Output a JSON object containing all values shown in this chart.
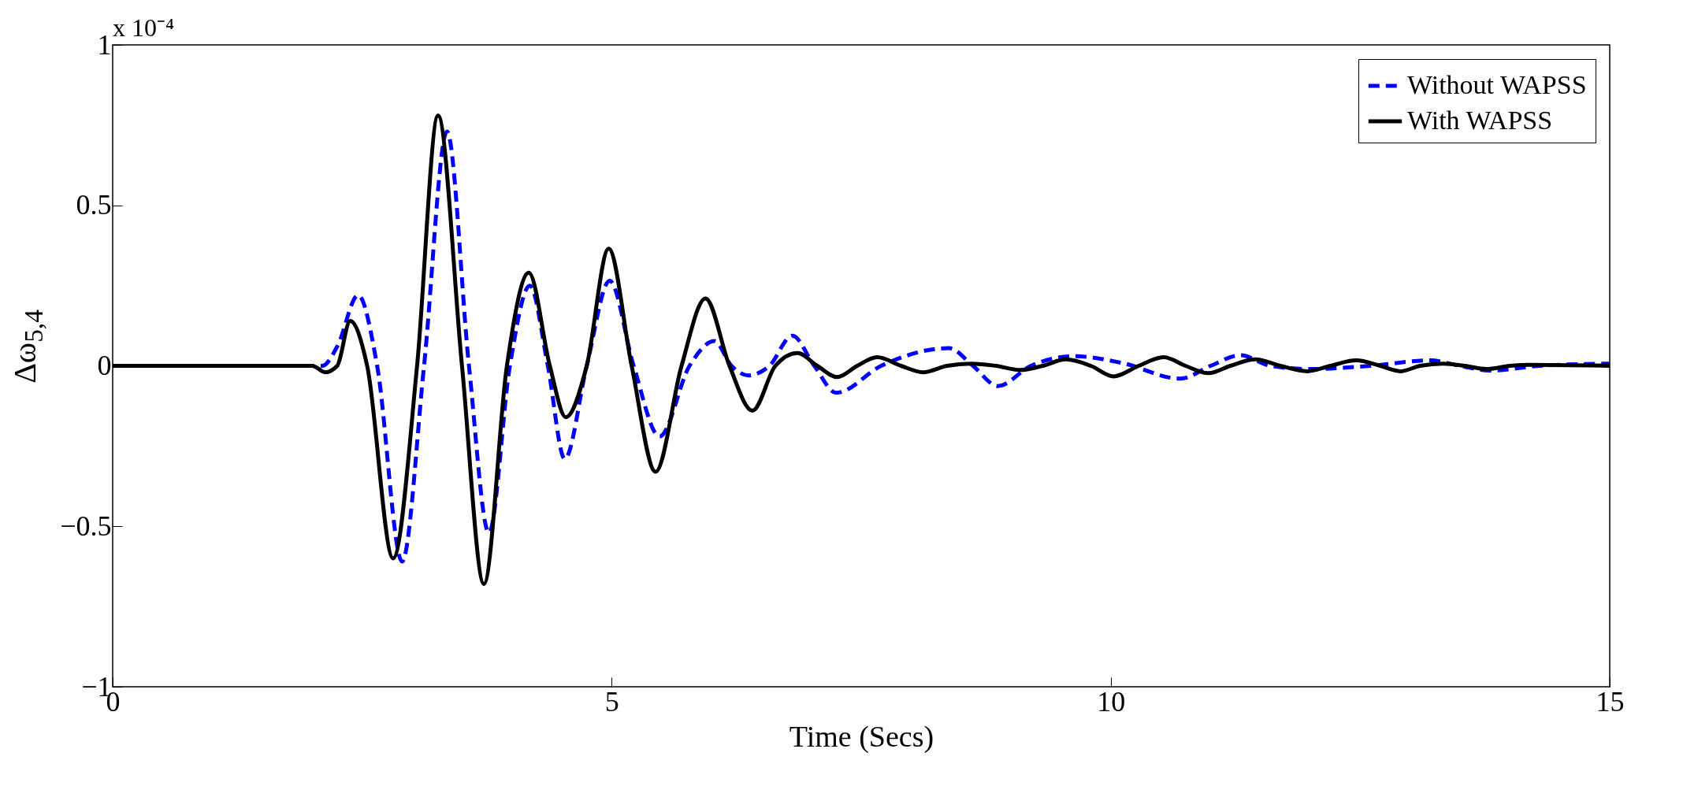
{
  "chart_data": {
    "type": "line",
    "xlabel": "Time (Secs)",
    "ylabel": "Δω$_{5,4}$",
    "annotations": [
      "x 10⁻⁴"
    ],
    "xlim": [
      0,
      15
    ],
    "xticks": [
      0,
      5,
      10,
      15
    ],
    "ylim": [
      -1,
      1
    ],
    "yticks": [
      -1,
      -0.5,
      0,
      0.5,
      1
    ],
    "grid": false,
    "legend": "top right",
    "marker": "none",
    "series": [
      {
        "name": "Without WAPSS",
        "color": "#0000ff",
        "line_style": "dashed",
        "x": [
          0,
          2.1,
          2.25,
          2.46,
          2.65,
          2.9,
          3.12,
          3.35,
          3.57,
          3.77,
          3.98,
          4.18,
          4.36,
          4.53,
          4.75,
          4.98,
          5.22,
          5.48,
          5.78,
          6.03,
          6.2,
          6.37,
          6.58,
          6.81,
          7.03,
          7.25,
          7.7,
          8.38,
          8.62,
          8.87,
          9.2,
          9.63,
          10.1,
          10.7,
          11.0,
          11.3,
          11.6,
          12.0,
          12.6,
          13.2,
          13.5,
          13.8,
          14.3,
          15
        ],
        "values": [
          0,
          0,
          0.06,
          0.22,
          0,
          -0.61,
          0,
          0.73,
          0,
          -0.52,
          0,
          0.25,
          0,
          -0.29,
          0,
          0.265,
          0,
          -0.22,
          0,
          0.077,
          0,
          -0.03,
          0,
          0.094,
          0,
          -0.084,
          0,
          0.055,
          0,
          -0.063,
          0,
          0.03,
          0.01,
          -0.04,
          0,
          0.033,
          0,
          -0.01,
          0,
          0.017,
          0,
          -0.015,
          0,
          0.007
        ]
      },
      {
        "name": "With WAPSS",
        "color": "#000000",
        "line_style": "solid",
        "x": [
          0,
          2.0,
          2.13,
          2.25,
          2.38,
          2.55,
          2.81,
          3.05,
          3.26,
          3.5,
          3.72,
          3.95,
          4.17,
          4.38,
          4.54,
          4.75,
          4.97,
          5.2,
          5.44,
          5.7,
          5.94,
          6.18,
          6.41,
          6.64,
          6.86,
          7.06,
          7.26,
          7.46,
          7.66,
          7.9,
          8.12,
          8.36,
          8.6,
          8.85,
          9.09,
          9.32,
          9.55,
          9.8,
          10.03,
          10.28,
          10.53,
          10.75,
          10.98,
          11.2,
          11.45,
          11.7,
          11.97,
          12.2,
          12.46,
          12.7,
          12.9,
          13.1,
          13.33,
          13.55,
          13.76,
          14.0,
          14.19,
          15
        ],
        "values": [
          0,
          0,
          -0.02,
          0,
          0.14,
          0,
          -0.6,
          0,
          0.78,
          0,
          -0.68,
          0,
          0.29,
          0,
          -0.16,
          0,
          0.365,
          0,
          -0.33,
          0,
          0.21,
          0,
          -0.14,
          0,
          0.04,
          0,
          -0.035,
          0,
          0.027,
          0,
          -0.02,
          0,
          0.007,
          0,
          -0.013,
          0,
          0.02,
          0,
          -0.033,
          0,
          0.027,
          0,
          -0.023,
          0,
          0.02,
          0,
          -0.017,
          0,
          0.017,
          0,
          -0.017,
          0,
          0.007,
          0,
          -0.01,
          0,
          0.003,
          0
        ]
      }
    ]
  }
}
